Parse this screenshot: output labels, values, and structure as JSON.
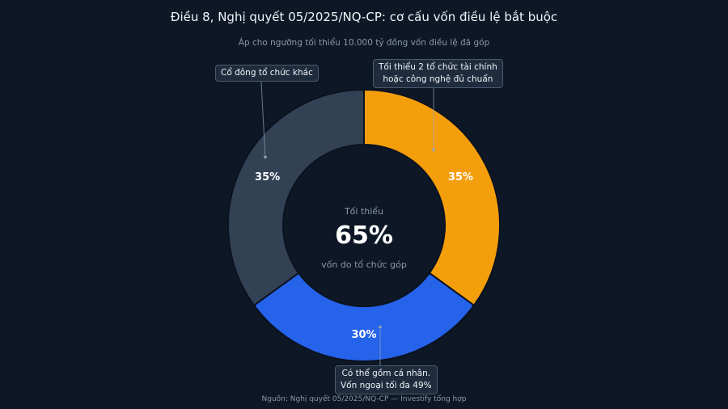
{
  "title": "Điều 8, Nghị quyết 05/2025/NQ-CP: cơ cấu vốn điều lệ bắt buộc",
  "subtitle": "Áp cho ngưỡng tối thiểu 10.000 tỷ đồng vốn điều lệ đã góp",
  "source": "Nguồn: Nghị quyết 05/2025/NQ-CP — Investify tổng hợp",
  "center": {
    "top_label": "Tối thiểu",
    "value_label": "65%",
    "bottom_label": "vốn do tổ chức góp"
  },
  "callouts": {
    "left": "Cổ đông tổ chức khác",
    "right": "Tối thiểu 2 tổ chức tài chính\nhoặc công nghệ đủ chuẩn",
    "bottom": "Có thể gồm cá nhân.\nVốn ngoại tối đa 49%"
  },
  "colors": {
    "background": "#0d1726",
    "slice_orange": "#f59e0b",
    "slice_blue": "#2563eb",
    "slice_slate": "#334155",
    "divider": "#0b1220"
  },
  "chart_data": {
    "type": "pie",
    "style": "donut",
    "categories": [
      "Tối thiểu 2 tổ chức tài chính hoặc công nghệ đủ chuẩn",
      "Có thể gồm cá nhân. Vốn ngoại tối đa 49%",
      "Cổ đông tổ chức khác"
    ],
    "values": [
      35,
      30,
      35
    ],
    "labels": [
      "35%",
      "30%",
      "35%"
    ],
    "colors": [
      "#f59e0b",
      "#2563eb",
      "#334155"
    ]
  }
}
